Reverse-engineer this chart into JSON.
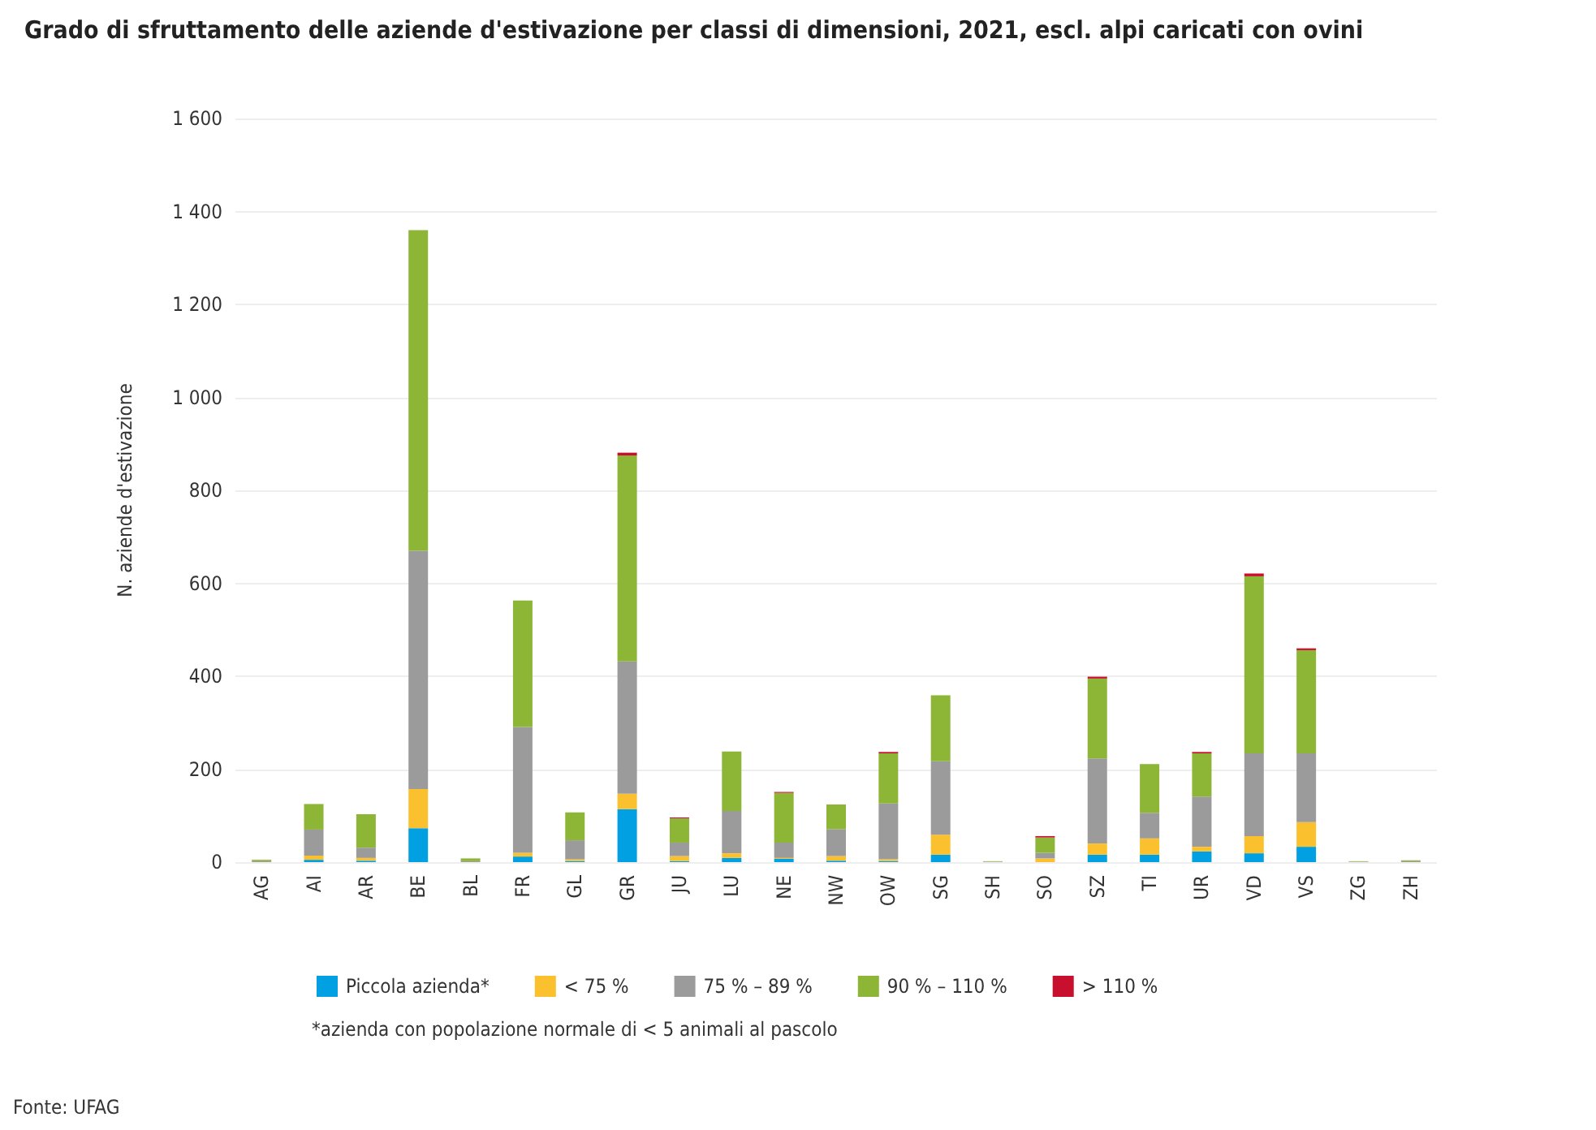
{
  "chart_data": {
    "type": "bar",
    "stacked": true,
    "title": "Grado di sfruttamento delle aziende d'estivazione per classi di dimensioni, 2021, escl. alpi caricati con ovini",
    "ylabel": "N. aziende d'estivazione",
    "categories": [
      "AG",
      "AI",
      "AR",
      "BE",
      "BL",
      "FR",
      "GL",
      "GR",
      "JU",
      "LU",
      "NE",
      "NW",
      "OW",
      "SG",
      "SH",
      "SO",
      "SZ",
      "TI",
      "UR",
      "VD",
      "VS",
      "ZG",
      "ZH"
    ],
    "series": [
      {
        "name": "Piccola azienda*",
        "color": "#00a0e3",
        "values": [
          0,
          5,
          3,
          73,
          0,
          12,
          2,
          114,
          2,
          9,
          7,
          3,
          2,
          16,
          0,
          null,
          16,
          16,
          23,
          19,
          33,
          0,
          0
        ]
      },
      {
        "name": "< 75 %",
        "color": "#fbc02d",
        "values": [
          0,
          9,
          6,
          84,
          0,
          8,
          4,
          33,
          11,
          10,
          2,
          10,
          4,
          43,
          0,
          8,
          24,
          35,
          10,
          37,
          53,
          0,
          0
        ]
      },
      {
        "name": "75 % – 89 %",
        "color": "#9b9b9b",
        "values": [
          2,
          56,
          22,
          513,
          2,
          271,
          41,
          285,
          29,
          91,
          33,
          58,
          120,
          158,
          1,
          12,
          183,
          55,
          108,
          178,
          148,
          1,
          2
        ]
      },
      {
        "name": "90 % – 110 %",
        "color": "#8db536",
        "values": [
          3,
          55,
          72,
          690,
          6,
          272,
          60,
          443,
          52,
          128,
          107,
          53,
          108,
          142,
          1,
          33,
          172,
          105,
          93,
          381,
          222,
          1,
          2
        ]
      },
      {
        "name": "> 110 %",
        "color": "#c8102e",
        "values": [
          0,
          0,
          0,
          0,
          0,
          0,
          0,
          6,
          2,
          0,
          2,
          0,
          3,
          0,
          0,
          3,
          4,
          0,
          3,
          6,
          4,
          0,
          0
        ]
      }
    ],
    "ylim": [
      0,
      1600
    ],
    "yticks": [
      0,
      200,
      400,
      600,
      800,
      {
        "value": 1000,
        "label": "1 000"
      },
      {
        "value": 1200,
        "label": "1 200"
      },
      {
        "value": 1400,
        "label": "1 400"
      },
      {
        "value": 1600,
        "label": "1 600"
      }
    ],
    "grid": "y",
    "legend": "bottom",
    "annotations": [
      "*azienda con popolazione normale di < 5 animali al pascolo",
      "Fonte: UFAG"
    ]
  }
}
